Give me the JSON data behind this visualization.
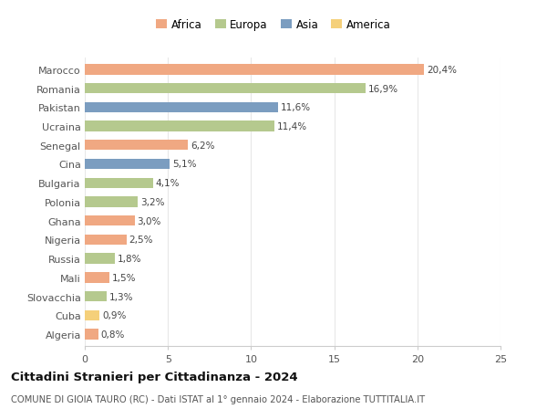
{
  "categories": [
    "Marocco",
    "Romania",
    "Pakistan",
    "Ucraina",
    "Senegal",
    "Cina",
    "Bulgaria",
    "Polonia",
    "Ghana",
    "Nigeria",
    "Russia",
    "Mali",
    "Slovacchia",
    "Cuba",
    "Algeria"
  ],
  "values": [
    20.4,
    16.9,
    11.6,
    11.4,
    6.2,
    5.1,
    4.1,
    3.2,
    3.0,
    2.5,
    1.8,
    1.5,
    1.3,
    0.9,
    0.8
  ],
  "labels": [
    "20,4%",
    "16,9%",
    "11,6%",
    "11,4%",
    "6,2%",
    "5,1%",
    "4,1%",
    "3,2%",
    "3,0%",
    "2,5%",
    "1,8%",
    "1,5%",
    "1,3%",
    "0,9%",
    "0,8%"
  ],
  "continents": [
    "Africa",
    "Europa",
    "Asia",
    "Europa",
    "Africa",
    "Asia",
    "Europa",
    "Europa",
    "Africa",
    "Africa",
    "Europa",
    "Africa",
    "Europa",
    "America",
    "Africa"
  ],
  "colors": {
    "Africa": "#F0A882",
    "Europa": "#B5C98E",
    "Asia": "#7B9DC0",
    "America": "#F5D07A"
  },
  "legend_order": [
    "Africa",
    "Europa",
    "Asia",
    "America"
  ],
  "title": "Cittadini Stranieri per Cittadinanza - 2024",
  "subtitle": "COMUNE DI GIOIA TAURO (RC) - Dati ISTAT al 1° gennaio 2024 - Elaborazione TUTTITALIA.IT",
  "xlim": [
    0,
    25
  ],
  "xticks": [
    0,
    5,
    10,
    15,
    20,
    25
  ],
  "background_color": "#ffffff",
  "grid_color": "#e8e8e8"
}
